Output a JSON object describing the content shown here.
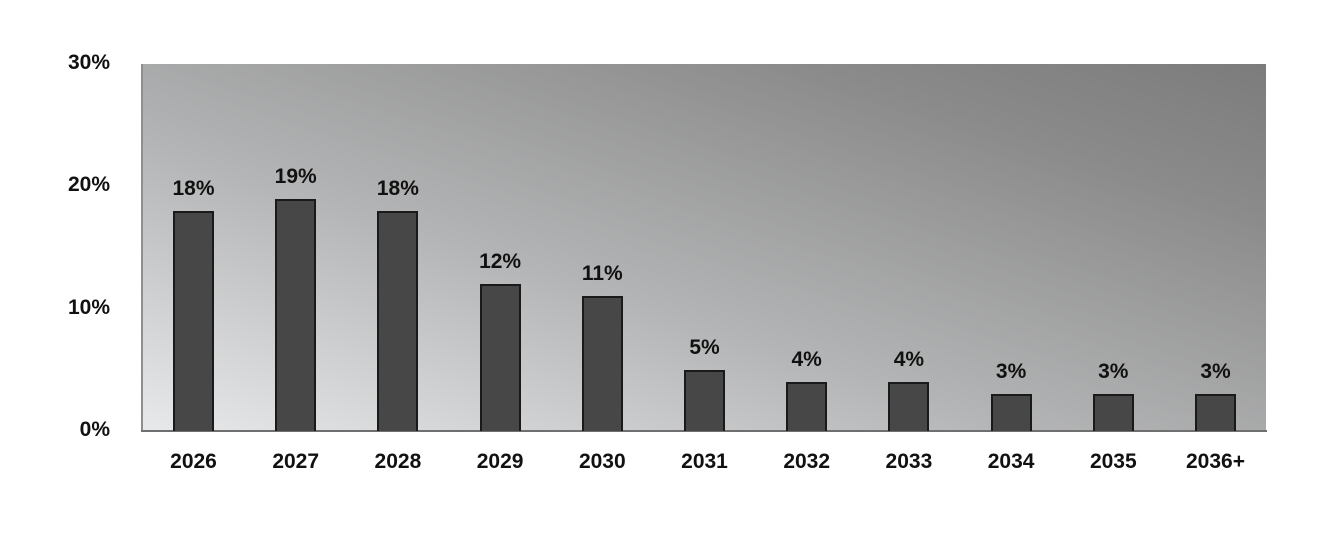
{
  "chart_data": {
    "type": "bar",
    "title": "",
    "xlabel": "",
    "ylabel": "",
    "categories": [
      "2026",
      "2027",
      "2028",
      "2029",
      "2030",
      "2031",
      "2032",
      "2033",
      "2034",
      "2035",
      "2036+"
    ],
    "values": [
      18,
      19,
      18,
      12,
      11,
      5,
      4,
      4,
      3,
      3,
      3
    ],
    "value_labels": [
      "18%",
      "19%",
      "18%",
      "12%",
      "11%",
      "5%",
      "4%",
      "4%",
      "3%",
      "3%",
      "3%"
    ],
    "ylim": [
      0,
      30
    ],
    "yticks": [
      0,
      10,
      20,
      30
    ],
    "ytick_labels": [
      "0%",
      "10%",
      "20%",
      "30%"
    ],
    "grid": false,
    "legend": null,
    "colors": {
      "bar": "#474747",
      "bar_border": "#1a1a1a",
      "plot_bg_light": "#e8e9ea",
      "plot_bg_dark": "#7c7c7c"
    }
  }
}
